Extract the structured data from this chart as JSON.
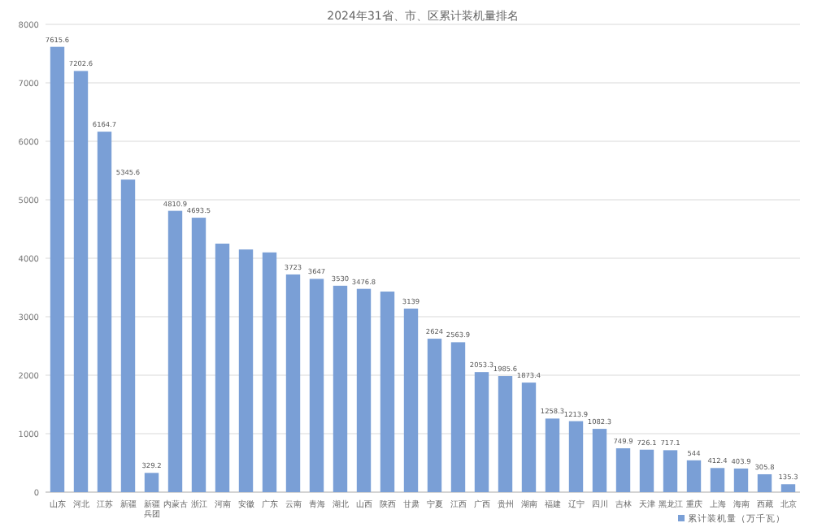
{
  "chart_data": {
    "type": "bar",
    "title": "2024年31省、市、区累计装机量排名",
    "categories": [
      "山东",
      "河北",
      "江苏",
      "新疆",
      "新疆兵团",
      "内蒙古",
      "浙江",
      "河南",
      "安徽",
      "广东",
      "云南",
      "青海",
      "湖北",
      "山西",
      "陕西",
      "甘肃",
      "宁夏",
      "江西",
      "广西",
      "贵州",
      "湖南",
      "福建",
      "辽宁",
      "四川",
      "吉林",
      "天津",
      "黑龙江",
      "重庆",
      "上海",
      "海南",
      "西藏",
      "北京"
    ],
    "series": [
      {
        "name": "累计装机量（万千瓦）",
        "color": "#7a9fd6",
        "values": [
          7615.6,
          7202.6,
          6164.7,
          5345.6,
          329.2,
          4810.9,
          4693.5,
          4250,
          4150,
          4100,
          3723,
          3647,
          3530,
          3476.8,
          3430,
          3139,
          2624,
          2563.9,
          2053.3,
          1985.6,
          1873.4,
          1258.3,
          1213.9,
          1082.3,
          749.9,
          726.1,
          717.1,
          544,
          412.4,
          403.9,
          305.8,
          135.3
        ],
        "value_labels": [
          "7615.6",
          "7202.6",
          "6164.7",
          "5345.6",
          "329.2",
          "4810.9",
          "4693.5",
          null,
          null,
          null,
          "3723",
          "3647",
          "3530",
          "3476.8",
          null,
          "3139",
          "2624",
          "2563.9",
          "2053.3",
          "1985.6",
          "1873.4",
          "1258.3",
          "1213.9",
          "1082.3",
          "749.9",
          "726.1",
          "717.1",
          "544",
          "412.4",
          "403.9",
          "305.8",
          "135.3"
        ]
      }
    ],
    "ylim": [
      0,
      8000
    ],
    "yticks": [
      0,
      1000,
      2000,
      3000,
      4000,
      5000,
      6000,
      7000,
      8000
    ],
    "grid": "y",
    "legend": "bottom right"
  }
}
